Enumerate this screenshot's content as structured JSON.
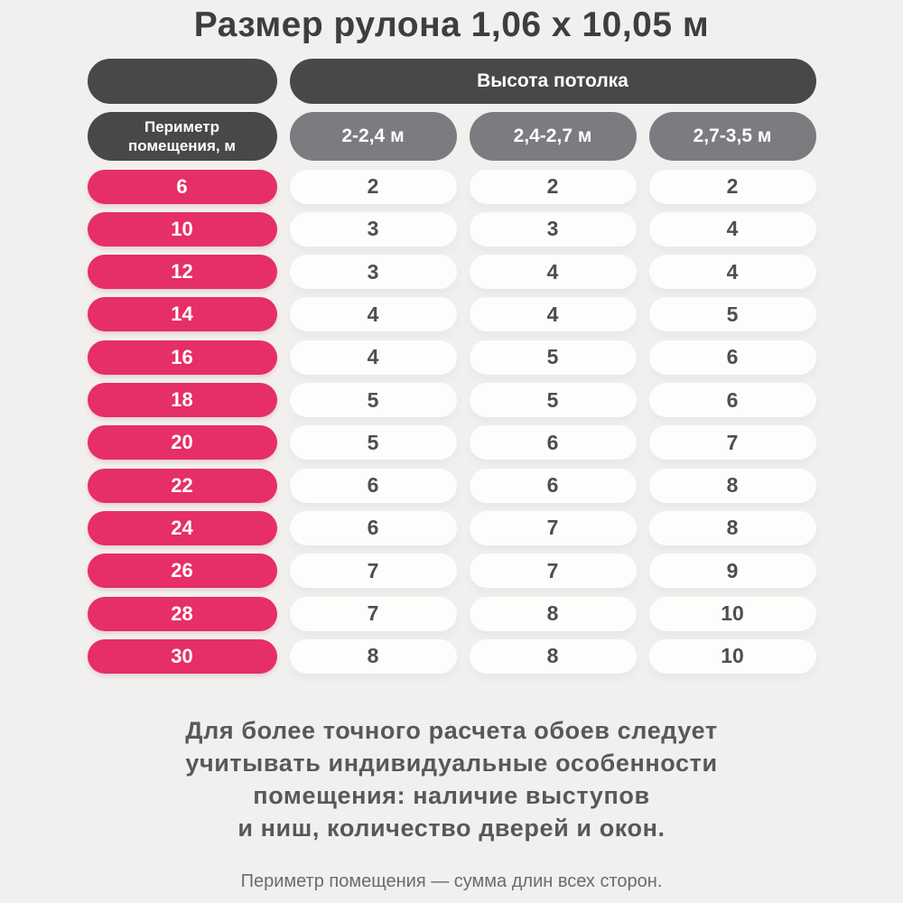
{
  "chart_data": {
    "type": "table",
    "title": "Размер рулона 1,06 х 10,05 м",
    "ceiling_header": "Высота потолка",
    "perimeter_header": "Периметр помещения, м",
    "columns": [
      "2-2,4 м",
      "2,4-2,7 м",
      "2,7-3,5 м"
    ],
    "rows": [
      {
        "perimeter": "6",
        "values": [
          "2",
          "2",
          "2"
        ]
      },
      {
        "perimeter": "10",
        "values": [
          "3",
          "3",
          "4"
        ]
      },
      {
        "perimeter": "12",
        "values": [
          "3",
          "4",
          "4"
        ]
      },
      {
        "perimeter": "14",
        "values": [
          "4",
          "4",
          "5"
        ]
      },
      {
        "perimeter": "16",
        "values": [
          "4",
          "5",
          "6"
        ]
      },
      {
        "perimeter": "18",
        "values": [
          "5",
          "5",
          "6"
        ]
      },
      {
        "perimeter": "20",
        "values": [
          "5",
          "6",
          "7"
        ]
      },
      {
        "perimeter": "22",
        "values": [
          "6",
          "6",
          "8"
        ]
      },
      {
        "perimeter": "24",
        "values": [
          "6",
          "7",
          "8"
        ]
      },
      {
        "perimeter": "26",
        "values": [
          "7",
          "7",
          "9"
        ]
      },
      {
        "perimeter": "28",
        "values": [
          "7",
          "8",
          "10"
        ]
      },
      {
        "perimeter": "30",
        "values": [
          "8",
          "8",
          "10"
        ]
      }
    ]
  },
  "footer": {
    "note_lines": [
      "Для более точного расчета обоев следует",
      "учитывать индивидуальные особенности",
      "помещения: наличие выступов",
      "и ниш, количество дверей и окон."
    ],
    "caption": "Периметр помещения — сумма длин всех сторон."
  },
  "colors": {
    "background": "#f1f0ee",
    "dark_pill": "#48484a",
    "gray_pill": "#7b7c80",
    "pink_pill": "#e62e68",
    "white_pill": "#fdfdfc",
    "title_text": "#3e3e40",
    "note_text": "#58585a",
    "caption_text": "#6b6b6d"
  }
}
